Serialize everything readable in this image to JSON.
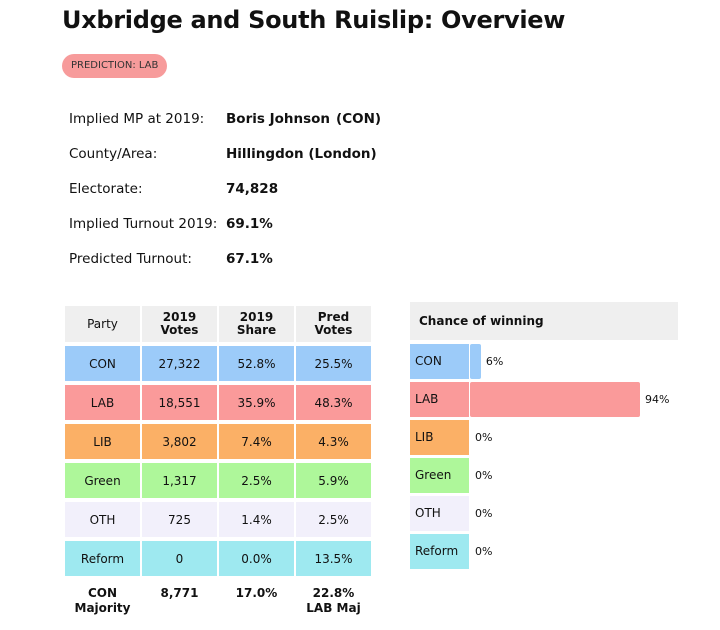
{
  "page_title": "Uxbridge and South Ruislip: Overview",
  "prediction_badge": "PREDICTION: LAB",
  "info": {
    "mp_label": "Implied MP at 2019:",
    "mp_name": "Boris Johnson",
    "mp_party": "(CON)",
    "county_label": "County/Area:",
    "county_value": "Hillingdon (London)",
    "electorate_label": "Electorate:",
    "electorate_value": "74,828",
    "turnout2019_label": "Implied Turnout 2019:",
    "turnout2019_value": "69.1%",
    "predturnout_label": "Predicted Turnout:",
    "predturnout_value": "67.1%"
  },
  "colors": {
    "CON": "#9ccbf9",
    "LAB": "#fa9a9a",
    "LIB": "#fbb066",
    "Green": "#aef79a",
    "OTH": "#f2f0fb",
    "Reform": "#9ee9f0",
    "badge": "#f79b9b",
    "header_bg": "#efefef"
  },
  "results": {
    "headers": {
      "party": "Party",
      "votes_2019_line1": "2019",
      "votes_2019_line2": "Votes",
      "share_2019_line1": "2019",
      "share_2019_line2": "Share",
      "pred_votes_line1": "Pred",
      "pred_votes_line2": "Votes"
    },
    "rows": [
      {
        "party": "CON",
        "votes2019": "27,322",
        "share2019": "52.8%",
        "pred": "25.5%"
      },
      {
        "party": "LAB",
        "votes2019": "18,551",
        "share2019": "35.9%",
        "pred": "48.3%"
      },
      {
        "party": "LIB",
        "votes2019": "3,802",
        "share2019": "7.4%",
        "pred": "4.3%"
      },
      {
        "party": "Green",
        "votes2019": "1,317",
        "share2019": "2.5%",
        "pred": "5.9%"
      },
      {
        "party": "OTH",
        "votes2019": "725",
        "share2019": "1.4%",
        "pred": "2.5%"
      },
      {
        "party": "Reform",
        "votes2019": "0",
        "share2019": "0.0%",
        "pred": "13.5%"
      }
    ],
    "majority": {
      "party_line1": "CON",
      "party_line2": "Majority",
      "votes": "8,771",
      "share": "17.0%",
      "pred_line1": "22.8%",
      "pred_line2": "LAB Maj"
    }
  },
  "chance": {
    "heading": "Chance of winning",
    "rows": [
      {
        "party": "CON",
        "value": 6,
        "label": "6%"
      },
      {
        "party": "LAB",
        "value": 94,
        "label": "94%"
      },
      {
        "party": "LIB",
        "value": 0,
        "label": "0%"
      },
      {
        "party": "Green",
        "value": 0,
        "label": "0%"
      },
      {
        "party": "OTH",
        "value": 0,
        "label": "0%"
      },
      {
        "party": "Reform",
        "value": 0,
        "label": "0%"
      }
    ]
  }
}
